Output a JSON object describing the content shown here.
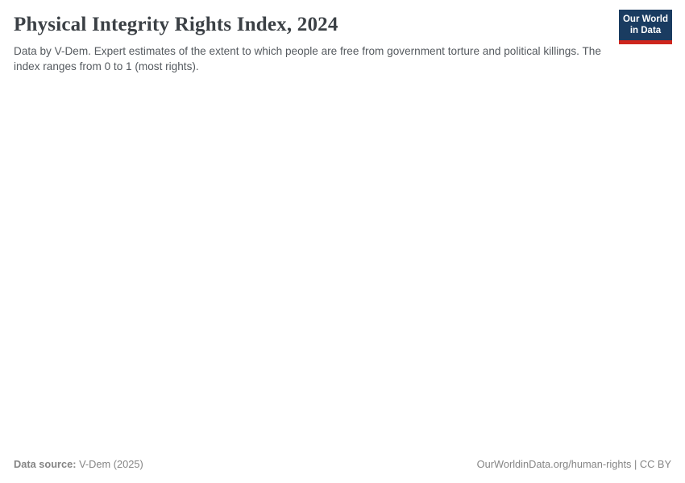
{
  "header": {
    "title": "Physical Integrity Rights Index, 2024",
    "subtitle": "Data by V-Dem. Expert estimates of the extent to which people are free from government torture and political killings. The index ranges from 0 to 1 (most rights)."
  },
  "logo": {
    "line1": "Our World",
    "line2": "in Data",
    "bg_color": "#1a3c61",
    "accent_color": "#ce261e"
  },
  "footer": {
    "source_label": "Data source:",
    "source_value": " V-Dem (2025)",
    "right_text": "OurWorldinData.org/human-rights | CC BY"
  },
  "chart_data": {
    "type": "map",
    "title": "Physical Integrity Rights Index, 2024",
    "subtitle": "Data by V-Dem. Expert estimates of the extent to which people are free from government torture and political killings. The index ranges from 0 to 1 (most rights).",
    "year": "2024",
    "index_range": [
      0,
      1
    ],
    "series": [],
    "plot_area_rendered_empty": true
  }
}
